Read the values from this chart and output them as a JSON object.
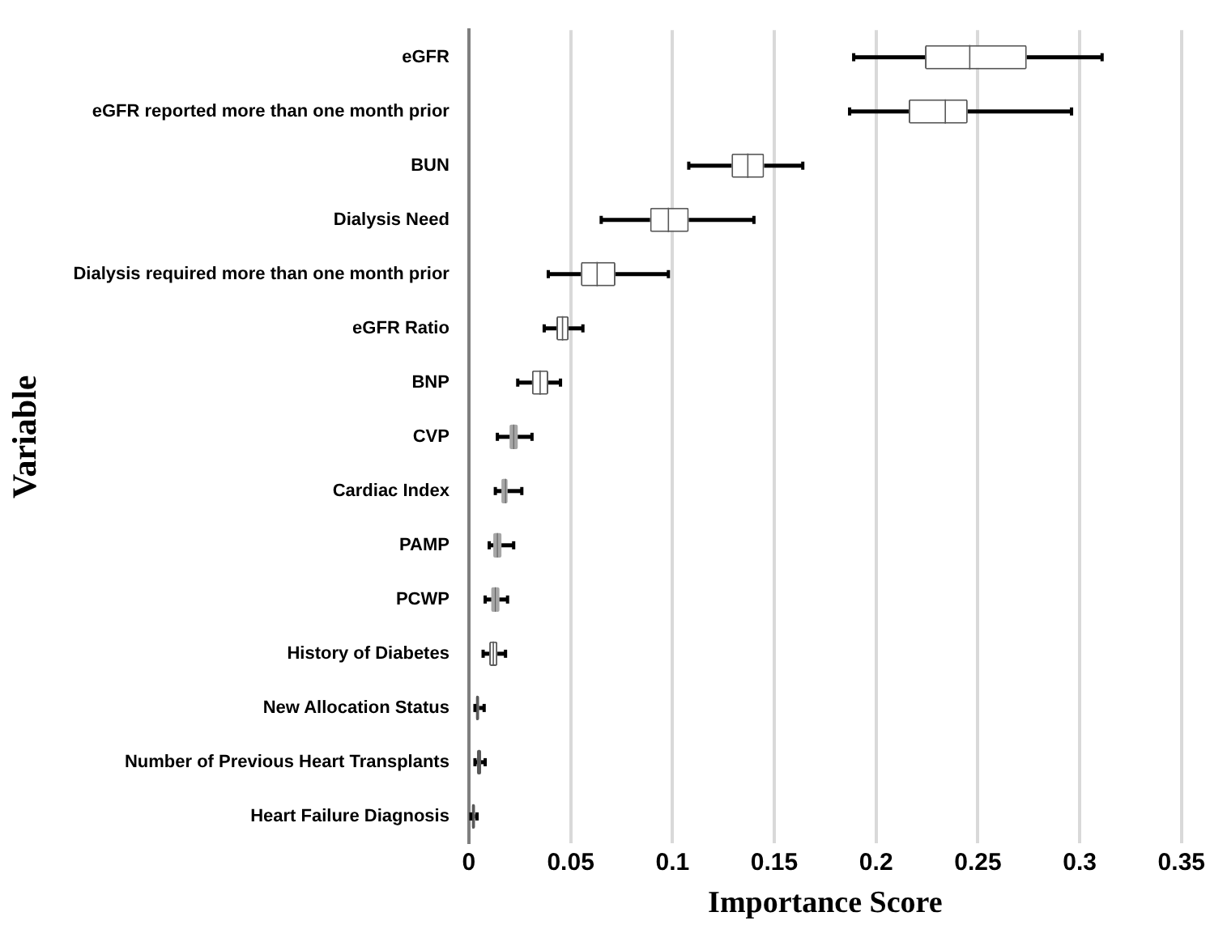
{
  "chart_data": {
    "type": "box",
    "orientation": "horizontal",
    "xlabel": "Importance Score",
    "ylabel": "Variable",
    "categories": [
      "eGFR",
      "eGFR reported more than one month prior",
      "BUN",
      "Dialysis Need",
      "Dialysis required more than one month prior",
      "eGFR Ratio",
      "BNP",
      "CVP",
      "Cardiac Index",
      "PAMP",
      "PCWP",
      "History of Diabetes",
      "New Allocation Status",
      "Number of Previous Heart Transplants",
      "Heart Failure Diagnosis"
    ],
    "boxes": [
      {
        "low": 0.189,
        "q1": 0.224,
        "median": 0.246,
        "q3": 0.274,
        "high": 0.311
      },
      {
        "low": 0.187,
        "q1": 0.216,
        "median": 0.234,
        "q3": 0.245,
        "high": 0.296
      },
      {
        "low": 0.108,
        "q1": 0.129,
        "median": 0.137,
        "q3": 0.145,
        "high": 0.164
      },
      {
        "low": 0.065,
        "q1": 0.089,
        "median": 0.098,
        "q3": 0.108,
        "high": 0.14
      },
      {
        "low": 0.039,
        "q1": 0.055,
        "median": 0.063,
        "q3": 0.072,
        "high": 0.098
      },
      {
        "low": 0.037,
        "q1": 0.043,
        "median": 0.046,
        "q3": 0.049,
        "high": 0.056
      },
      {
        "low": 0.024,
        "q1": 0.031,
        "median": 0.035,
        "q3": 0.039,
        "high": 0.045
      },
      {
        "low": 0.014,
        "q1": 0.02,
        "median": 0.022,
        "q3": 0.024,
        "high": 0.031
      },
      {
        "low": 0.013,
        "q1": 0.016,
        "median": 0.018,
        "q3": 0.019,
        "high": 0.026
      },
      {
        "low": 0.01,
        "q1": 0.012,
        "median": 0.014,
        "q3": 0.016,
        "high": 0.022
      },
      {
        "low": 0.008,
        "q1": 0.011,
        "median": 0.013,
        "q3": 0.015,
        "high": 0.019
      },
      {
        "low": 0.007,
        "q1": 0.01,
        "median": 0.012,
        "q3": 0.014,
        "high": 0.018
      },
      {
        "low": 0.003,
        "q1": 0.0035,
        "median": 0.004,
        "q3": 0.005,
        "high": 0.0075
      },
      {
        "low": 0.003,
        "q1": 0.004,
        "median": 0.005,
        "q3": 0.006,
        "high": 0.008
      },
      {
        "low": 0.001,
        "q1": 0.0015,
        "median": 0.002,
        "q3": 0.003,
        "high": 0.004
      }
    ],
    "colors": [
      "#ffffff",
      "#ffffff",
      "#ffffff",
      "#ffffff",
      "#ffffff",
      "#ffffff",
      "#ffffff",
      "#a6a6a6",
      "#a6a6a6",
      "#a6a6a6",
      "#a6a6a6",
      "#ffffff",
      "#595959",
      "#595959",
      "#595959"
    ],
    "xlim": [
      0,
      0.35
    ],
    "xticks": [
      0,
      0.05,
      0.1,
      0.15,
      0.2,
      0.25,
      0.3,
      0.35
    ],
    "grid": "x",
    "legend": false
  }
}
